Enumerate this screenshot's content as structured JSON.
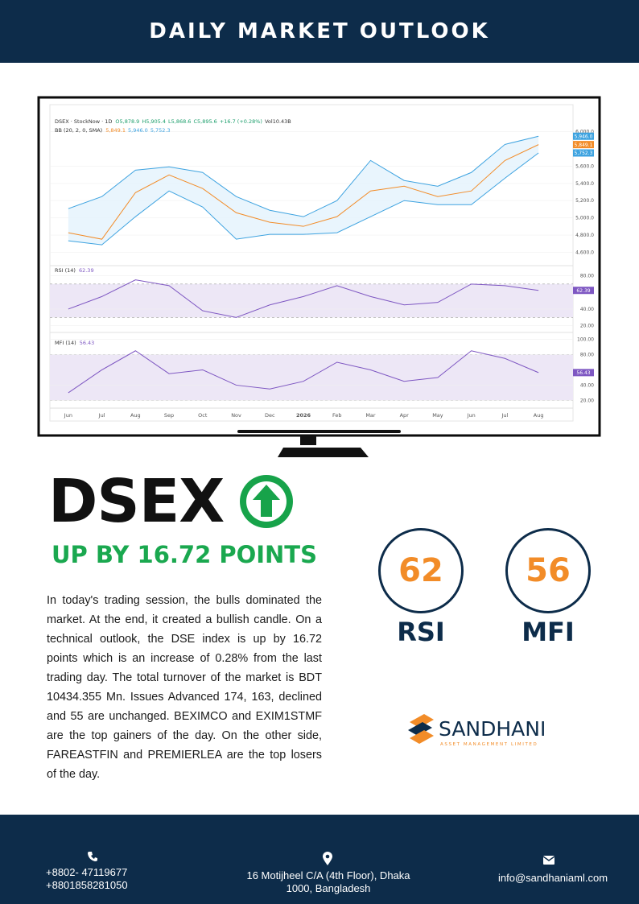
{
  "header": {
    "title": "DAILY MARKET OUTLOOK"
  },
  "chart_data": [
    {
      "type": "line",
      "title": "DSEX · StockNow · 1D",
      "ohlc": [
        "O5,878.9",
        "H5,905.4",
        "L5,868.6",
        "C5,895.6",
        "+16.7 (+0.28%)",
        "Vol10.43B"
      ],
      "subtitle": "BB (20, 2, 0, SMA)",
      "categories": [
        "Jun",
        "Jul",
        "Aug",
        "Sep",
        "Oct",
        "Nov",
        "Dec",
        "2026",
        "Feb",
        "Mar",
        "Apr",
        "May",
        "Jun",
        "Jul",
        "Aug"
      ],
      "series": [
        {
          "color": "#f28c28",
          "values": [
            4828,
            4753,
            5293,
            5498,
            5340,
            5060,
            4949,
            4902,
            5014,
            5312,
            5367,
            5247,
            5312,
            5665,
            5849.1
          ],
          "last_label": "5,849.1"
        },
        {
          "color": "#3ea3e0",
          "values": [
            5107,
            5247,
            5553,
            5591,
            5526,
            5247,
            5088,
            5014,
            5200,
            5665,
            5433,
            5367,
            5526,
            5851,
            5946.0
          ],
          "last_label": "5,946.0"
        },
        {
          "color": "#3ea3e0",
          "values": [
            4735,
            4688,
            5014,
            5312,
            5126,
            4753,
            4809,
            4809,
            4828,
            5014,
            5200,
            5153,
            5153,
            5460,
            5752.3
          ],
          "last_label": "5,752.3"
        }
      ],
      "ylim": [
        4400,
        6200
      ],
      "yticks": [
        {
          "value": 4600,
          "label": "4,600.0"
        },
        {
          "value": 4800,
          "label": "4,800.0"
        },
        {
          "value": 5000,
          "label": "5,000.0"
        },
        {
          "value": 5200,
          "label": "5,200.0"
        },
        {
          "value": 5400,
          "label": "5,400.0"
        },
        {
          "value": 5600,
          "label": "5,600.0"
        },
        {
          "value": 6000,
          "label": "6,000.0"
        }
      ]
    },
    {
      "type": "line",
      "title": "RSI (14)",
      "series": [
        {
          "color": "#7e57c2",
          "values": [
            40,
            55,
            75,
            68,
            38,
            30,
            45,
            55,
            68,
            55,
            45,
            48,
            70,
            68,
            62.39
          ]
        }
      ],
      "band": [
        30,
        70
      ],
      "ylim": [
        12,
        92
      ],
      "yticks": [
        {
          "value": 20,
          "label": "20.00"
        },
        {
          "value": 40,
          "label": "40.00"
        },
        {
          "value": 80,
          "label": "80.00"
        }
      ]
    },
    {
      "type": "line",
      "title": "MFI (14)",
      "series": [
        {
          "color": "#7e57c2",
          "values": [
            30,
            60,
            85,
            55,
            60,
            40,
            35,
            45,
            70,
            60,
            45,
            50,
            85,
            75,
            56.43
          ]
        }
      ],
      "band": [
        20,
        80
      ],
      "ylim": [
        12,
        109
      ],
      "yticks": [
        {
          "value": 20,
          "label": "20.00"
        },
        {
          "value": 40,
          "label": "40.00"
        },
        {
          "value": 80,
          "label": "80.00"
        },
        {
          "value": 100,
          "label": "100.00"
        }
      ]
    }
  ],
  "headline": {
    "index": "DSEX",
    "change": "UP BY 16.72 POINTS"
  },
  "summary": "In today's trading session, the bulls dominated the market.  At the end, it created a bullish candle. On a technical outlook, the DSE index is up by 16.72 points which is an increase of 0.28% from the last trading day. The total turnover of the market is BDT 10434.355 Mn. Issues Advanced 174, 163, declined and 55 are unchanged. BEXIMCO and EXIM1STMF  are the top gainers of the day. On the other side, FAREASTFIN and PREMIERLEA are the top losers of the day.",
  "indicators": [
    {
      "value": 62,
      "label": "RSI"
    },
    {
      "value": 56,
      "label": "MFI"
    }
  ],
  "brand": {
    "name": "SANDHANI",
    "tagline": "ASSET MANAGEMENT LIMITED"
  },
  "footer": {
    "phones": [
      "+8802- 47119677",
      "+8801858281050"
    ],
    "address": "16 Motijheel C/A (4th Floor), Dhaka 1000, Bangladesh",
    "email": "info@sandhaniaml.com"
  }
}
